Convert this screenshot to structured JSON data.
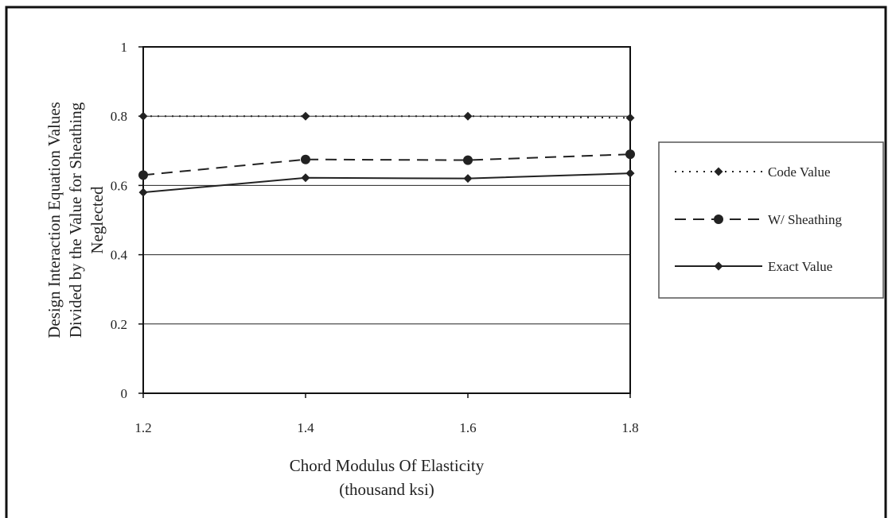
{
  "chart_data": {
    "type": "line",
    "x": [
      1.2,
      1.4,
      1.6,
      1.8
    ],
    "xlim": [
      1.2,
      1.8
    ],
    "ylim": [
      0,
      1
    ],
    "x_ticks": [
      "1.2",
      "1.4",
      "1.6",
      "1.8"
    ],
    "y_ticks": [
      "0",
      "0.2",
      "0.4",
      "0.6",
      "0.8",
      "1"
    ],
    "grid": "horizontal",
    "xlabel_lines": [
      "Chord Modulus Of Elasticity",
      "(thousand ksi)"
    ],
    "ylabel_lines": [
      "Design Interaction Equation Values",
      "Divided by the Value for Sheathing",
      "Neglected"
    ],
    "legend_position": "right",
    "series": [
      {
        "name": "Code Value",
        "values": [
          0.8,
          0.8,
          0.8,
          0.795
        ],
        "style": "dotted",
        "marker": "diamond",
        "color": "#222222"
      },
      {
        "name": "W/ Sheathing",
        "values": [
          0.63,
          0.675,
          0.673,
          0.69
        ],
        "style": "dashed",
        "marker": "circle",
        "color": "#222222"
      },
      {
        "name": "Exact Value",
        "values": [
          0.58,
          0.622,
          0.62,
          0.635
        ],
        "style": "solid",
        "marker": "diamond",
        "color": "#222222"
      }
    ]
  }
}
